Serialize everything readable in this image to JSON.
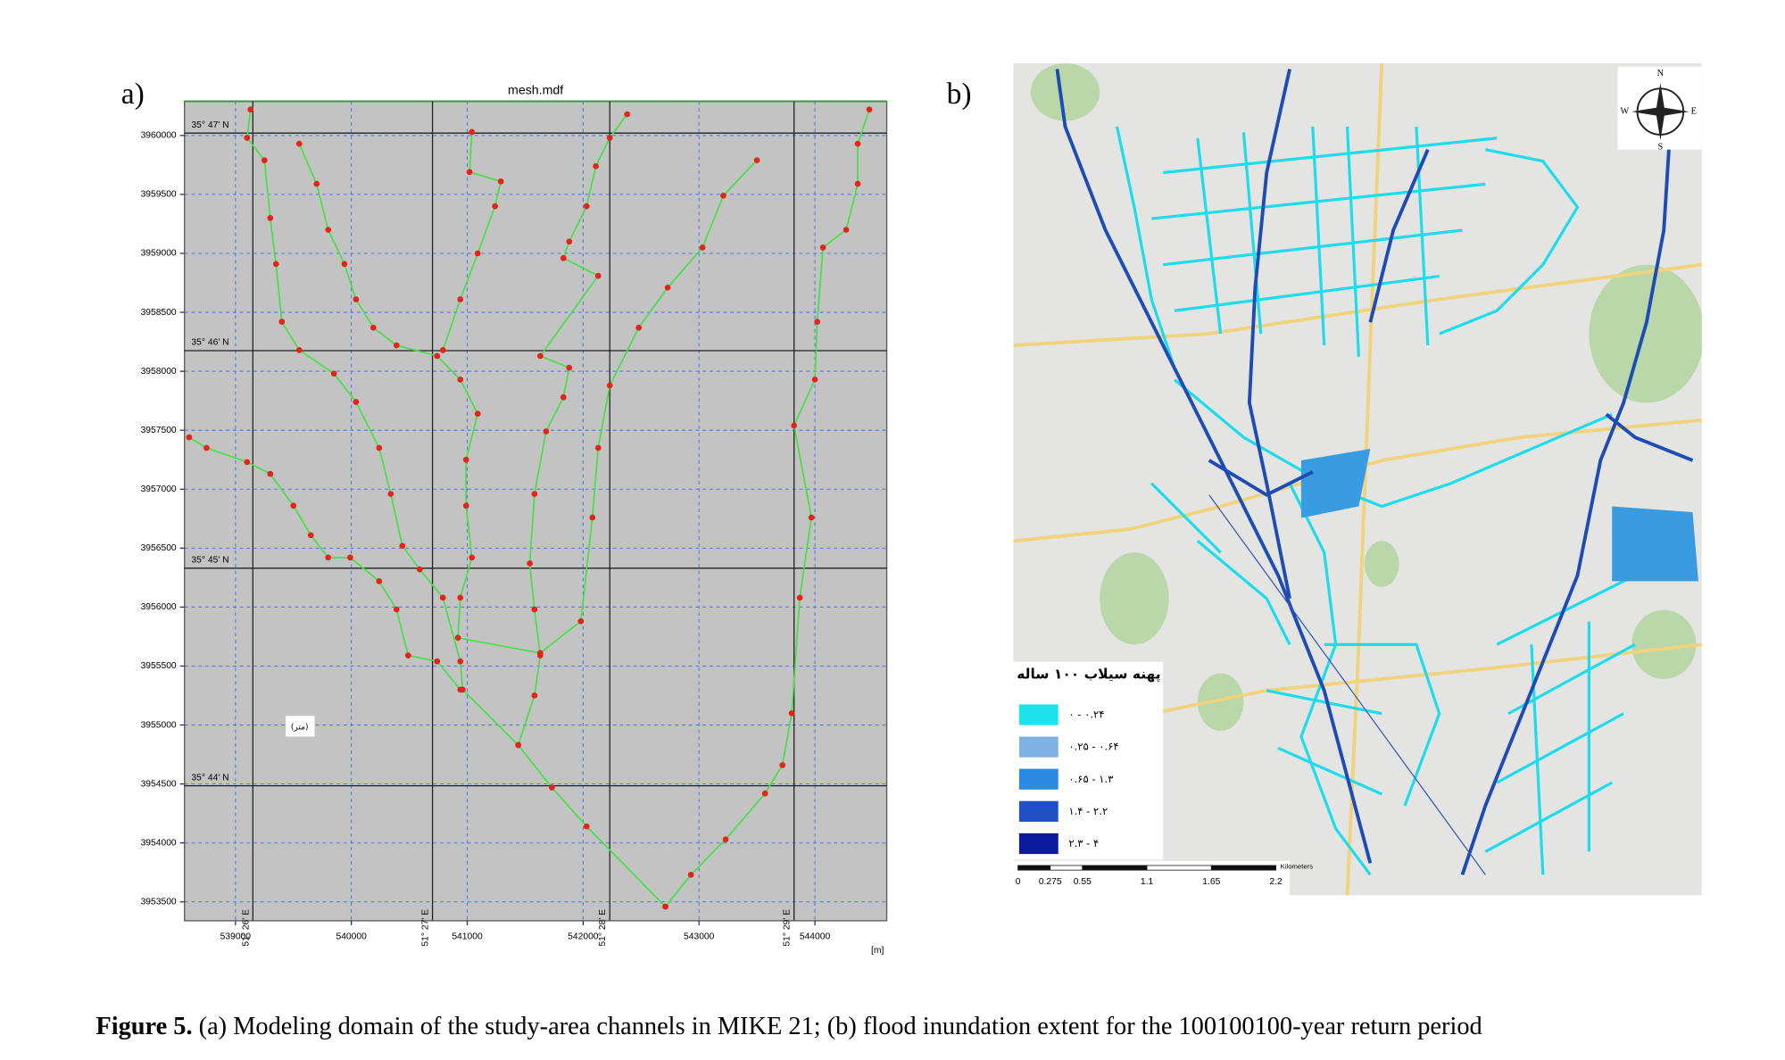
{
  "chart_data": {
    "type": "network",
    "label": "a)",
    "title": "mesh.mdf",
    "xlabel": "[m]",
    "note": "(متر)",
    "xlim": [
      538560,
      544620
    ],
    "ylim": [
      3953340,
      3960290
    ],
    "xticks": [
      539000,
      540000,
      541000,
      542000,
      543000,
      544000
    ],
    "yticks": [
      3953500,
      3954000,
      3954500,
      3955000,
      3955500,
      3956000,
      3956500,
      3957000,
      3957500,
      3958000,
      3958500,
      3959000,
      3959500,
      3960000
    ],
    "grid": true,
    "grid_color": "#4a78e0",
    "background": "#c3c3c3",
    "line_color": "#45e045",
    "point_color": "#e3241b",
    "graticule": {
      "lat": [
        {
          "value": 3960020,
          "label": "35° 47' N"
        },
        {
          "value": 3958175,
          "label": "35° 46' N"
        },
        {
          "value": 3956330,
          "label": "35° 45' N"
        },
        {
          "value": 3954485,
          "label": "35° 44' N"
        }
      ],
      "lon": [
        {
          "value": 539150,
          "label": "51° 26' E"
        },
        {
          "value": 540700,
          "label": "51° 27' E"
        },
        {
          "value": 542230,
          "label": "51° 28' E"
        },
        {
          "value": 543820,
          "label": "51° 29' E"
        }
      ]
    },
    "channels": [
      {
        "x": [
          539130,
          539100,
          539250,
          539300,
          539350,
          539400,
          539550,
          539850,
          540040,
          540240,
          540340,
          540440,
          540590,
          540790,
          540940,
          540960
        ],
        "y": [
          3960220,
          3959980,
          3959790,
          3959300,
          3958910,
          3958420,
          3958180,
          3957980,
          3957740,
          3957350,
          3956960,
          3956520,
          3956320,
          3956080,
          3955540,
          3955300
        ]
      },
      {
        "x": [
          539550,
          539700,
          539800,
          539940,
          540040,
          540190,
          540390,
          540740,
          540940,
          541090,
          540990,
          540990,
          541040,
          540940,
          540920,
          541630
        ],
        "y": [
          3959930,
          3959590,
          3959200,
          3958910,
          3958610,
          3958370,
          3958220,
          3958130,
          3957930,
          3957640,
          3957250,
          3956860,
          3956420,
          3956080,
          3955740,
          3955610
        ]
      },
      {
        "x": [
          541040,
          541020,
          541290,
          541240,
          541090,
          540940,
          540790
        ],
        "y": [
          3960030,
          3959690,
          3959610,
          3959400,
          3959000,
          3958610,
          3958180
        ]
      },
      {
        "x": [
          542380,
          542230,
          542110,
          542030,
          541880,
          541830,
          542130,
          541630,
          541880,
          541830,
          541680,
          541580,
          541540,
          541580,
          541630,
          541580,
          541440
        ],
        "y": [
          3960180,
          3959980,
          3959740,
          3959400,
          3959100,
          3958960,
          3958810,
          3958130,
          3958030,
          3957780,
          3957490,
          3956960,
          3956370,
          3955980,
          3955590,
          3955250,
          3954830
        ]
      },
      {
        "x": [
          543500,
          543210,
          543030,
          542730,
          542480,
          542230,
          542130,
          542080,
          541980,
          541630
        ],
        "y": [
          3959790,
          3959490,
          3959050,
          3958710,
          3958370,
          3957880,
          3957350,
          3956760,
          3955880,
          3955610
        ]
      },
      {
        "x": [
          544470,
          544370,
          544370,
          544270,
          544070,
          544020,
          544000,
          543820,
          543970,
          543870,
          543800,
          543720,
          543570,
          543230,
          542930,
          542710
        ],
        "y": [
          3960220,
          3959930,
          3959590,
          3959200,
          3959050,
          3958420,
          3957930,
          3957540,
          3956760,
          3956080,
          3955100,
          3954660,
          3954420,
          3954030,
          3953730,
          3953460
        ]
      },
      {
        "x": [
          540960,
          541440,
          541730,
          542030,
          542710
        ],
        "y": [
          3955300,
          3954830,
          3954470,
          3954140,
          3953460
        ]
      },
      {
        "x": [
          538600,
          538750,
          539100,
          539300,
          539500,
          539650,
          539800,
          539990,
          540240,
          540390,
          540490,
          540740,
          540940
        ],
        "y": [
          3957440,
          3957350,
          3957230,
          3957130,
          3956860,
          3956610,
          3956420,
          3956420,
          3956220,
          3955980,
          3955590,
          3955540,
          3955300
        ]
      }
    ]
  },
  "flood_map": {
    "label": "b)",
    "compass": {
      "n": "N",
      "s": "S",
      "e": "E",
      "w": "W"
    },
    "legend": {
      "title": "پهنه سیلاب ۱۰۰ ساله",
      "items": [
        {
          "label": "۰ - ۰.۲۴",
          "color": "#1ee3ec"
        },
        {
          "label": "۰.۲۵ - ۰.۶۴",
          "color": "#7fb2e2"
        },
        {
          "label": "۰.۶۵ - ۱.۳",
          "color": "#2b8be2"
        },
        {
          "label": "۱.۴ - ۲.۲",
          "color": "#2050c4"
        },
        {
          "label": "۲.۳ - ۴",
          "color": "#0c1a9c"
        }
      ]
    },
    "scale_bar": {
      "unit": "Kilometers",
      "ticks": [
        0,
        0.275,
        0.55,
        1.1,
        1.65,
        2.2
      ]
    }
  },
  "caption": {
    "label": "Figure 5.",
    "text": "(a) Modeling domain of the study-area channels in MIKE 21; (b) flood inundation extent for the 100100100-year return period"
  }
}
